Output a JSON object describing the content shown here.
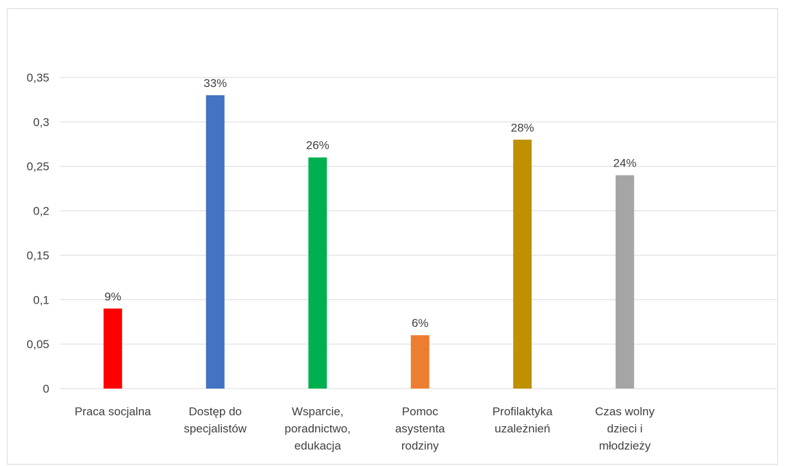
{
  "chart_data": {
    "type": "bar",
    "categories": [
      [
        "Praca socjalna"
      ],
      [
        "Dostęp do",
        "specjalistów"
      ],
      [
        "Wsparcie,",
        "poradnictwo,",
        "edukacja"
      ],
      [
        "Pomoc",
        "asystenta",
        "rodziny"
      ],
      [
        "Profilaktyka",
        "uzależnień"
      ],
      [
        "Czas wolny",
        "dzieci i",
        "młodzieży"
      ]
    ],
    "values": [
      0.09,
      0.33,
      0.26,
      0.06,
      0.28,
      0.24
    ],
    "data_labels": [
      "9%",
      "33%",
      "26%",
      "6%",
      "28%",
      "24%"
    ],
    "colors": [
      "#ff0000",
      "#4472c4",
      "#00b050",
      "#ed7d31",
      "#bf9000",
      "#a5a5a5"
    ],
    "y_ticks": [
      {
        "value": 0,
        "label": "0"
      },
      {
        "value": 0.05,
        "label": "0,05"
      },
      {
        "value": 0.1,
        "label": "0,1"
      },
      {
        "value": 0.15,
        "label": "0,15"
      },
      {
        "value": 0.2,
        "label": "0,2"
      },
      {
        "value": 0.25,
        "label": "0,25"
      },
      {
        "value": 0.3,
        "label": "0,3"
      },
      {
        "value": 0.35,
        "label": "0,35"
      }
    ],
    "ylim": [
      0,
      0.35
    ],
    "title": "",
    "xlabel": "",
    "ylabel": "",
    "grid": true,
    "legend": "none",
    "gridline_color": "#d9d9d9",
    "label_color": "#404040"
  }
}
